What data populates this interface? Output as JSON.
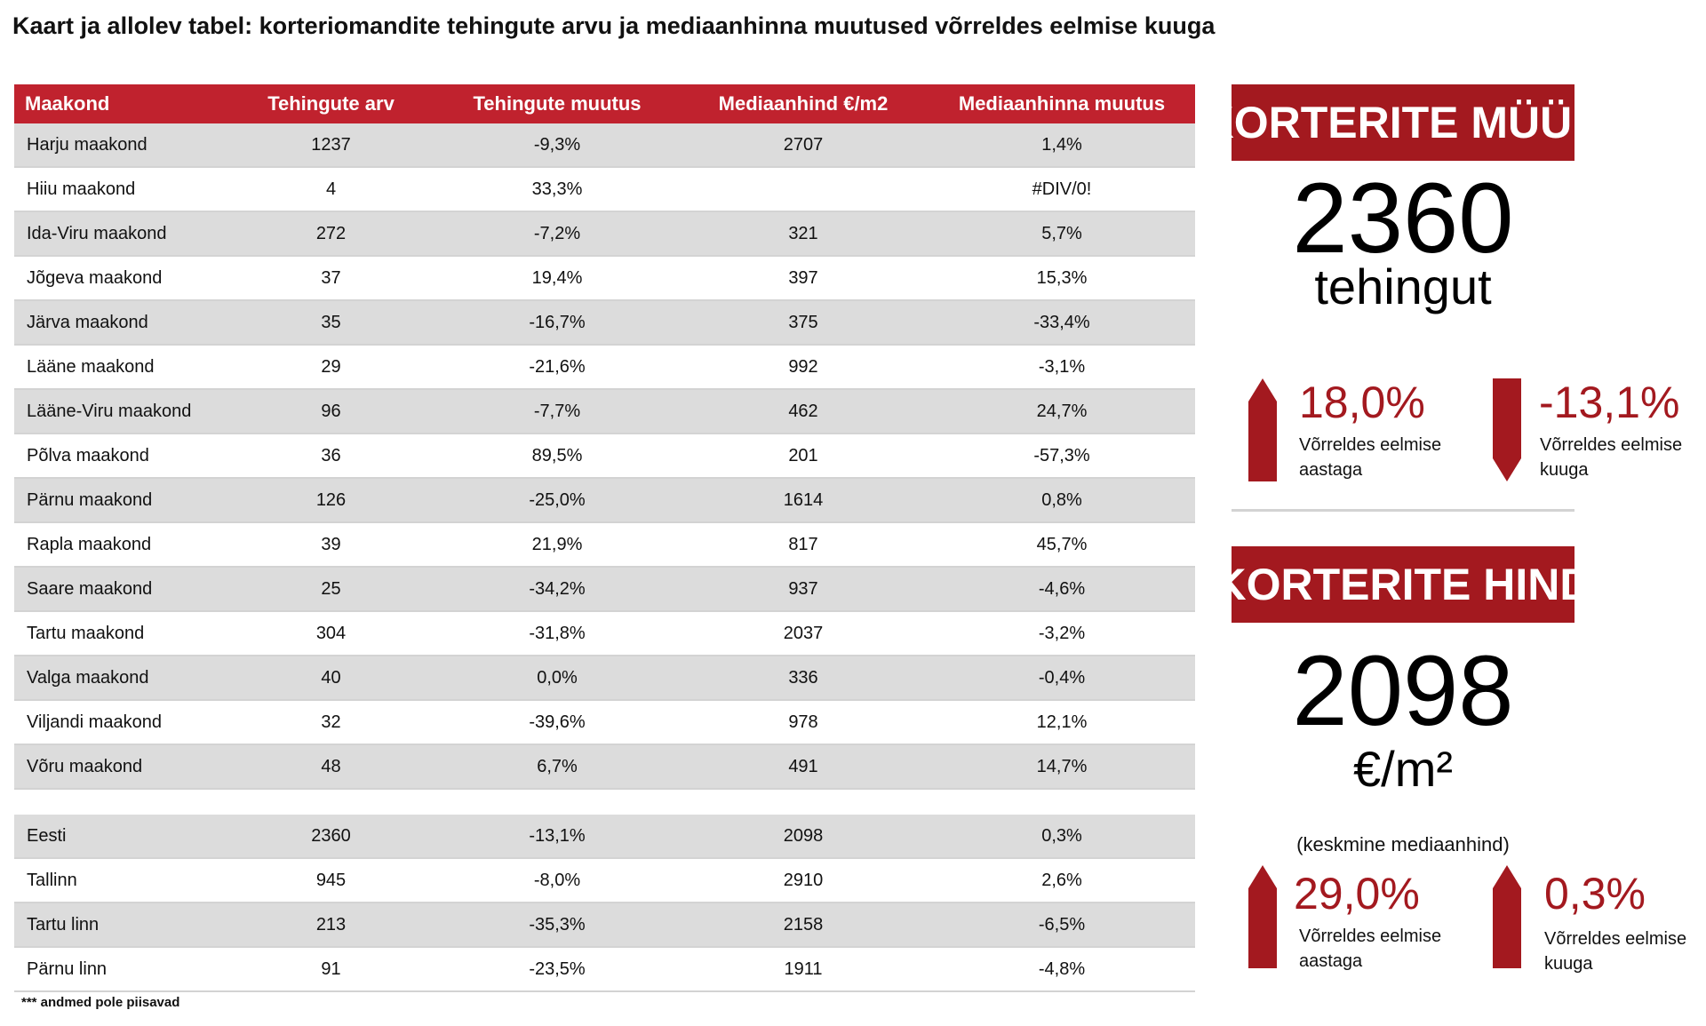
{
  "title": "Kaart ja allolev tabel: korteriomandite tehingute arvu ja mediaanhinna muutused võrreldes eelmise kuuga",
  "table": {
    "columns": [
      "Maakond",
      "Tehingute arv",
      "Tehingute muutus",
      "Mediaanhind €/m2",
      "Mediaanhinna muutus"
    ],
    "rows": [
      [
        "Harju maakond",
        "1237",
        "-9,3%",
        "2707",
        "1,4%"
      ],
      [
        "Hiiu maakond",
        "4",
        "33,3%",
        "",
        "#DIV/0!"
      ],
      [
        "Ida-Viru maakond",
        "272",
        "-7,2%",
        "321",
        "5,7%"
      ],
      [
        "Jõgeva maakond",
        "37",
        "19,4%",
        "397",
        "15,3%"
      ],
      [
        "Järva maakond",
        "35",
        "-16,7%",
        "375",
        "-33,4%"
      ],
      [
        "Lääne maakond",
        "29",
        "-21,6%",
        "992",
        "-3,1%"
      ],
      [
        "Lääne-Viru maakond",
        "96",
        "-7,7%",
        "462",
        "24,7%"
      ],
      [
        "Põlva maakond",
        "36",
        "89,5%",
        "201",
        "-57,3%"
      ],
      [
        "Pärnu maakond",
        "126",
        "-25,0%",
        "1614",
        "0,8%"
      ],
      [
        "Rapla maakond",
        "39",
        "21,9%",
        "817",
        "45,7%"
      ],
      [
        "Saare maakond",
        "25",
        "-34,2%",
        "937",
        "-4,6%"
      ],
      [
        "Tartu maakond",
        "304",
        "-31,8%",
        "2037",
        "-3,2%"
      ],
      [
        "Valga maakond",
        "40",
        "0,0%",
        "336",
        "-0,4%"
      ],
      [
        "Viljandi maakond",
        "32",
        "-39,6%",
        "978",
        "12,1%"
      ],
      [
        "Võru maakond",
        "48",
        "6,7%",
        "491",
        "14,7%"
      ]
    ],
    "summary_rows": [
      [
        "Eesti",
        "2360",
        "-13,1%",
        "2098",
        "0,3%"
      ],
      [
        "Tallinn",
        "945",
        "-8,0%",
        "2910",
        "2,6%"
      ],
      [
        "Tartu linn",
        "213",
        "-35,3%",
        "2158",
        "-6,5%"
      ],
      [
        "Pärnu linn",
        "91",
        "-23,5%",
        "1911",
        "-4,8%"
      ]
    ],
    "footnote": "*** andmed pole piisavad"
  },
  "sales": {
    "banner": "KORTERITE MÜÜK",
    "value": "2360",
    "unit": "tehingut",
    "yearly": {
      "value": "18,0%",
      "caption_line1": "Võrreldes eelmise",
      "caption_line2": "aastaga",
      "direction": "up"
    },
    "monthly": {
      "value": "-13,1%",
      "caption_line1": "Võrreldes eelmise",
      "caption_line2": "kuuga",
      "direction": "down"
    }
  },
  "price": {
    "banner": "KORTERITE HIND",
    "value": "2098",
    "unit": "€/m²",
    "caption": "(keskmine mediaanhind)",
    "yearly": {
      "value": "29,0%",
      "caption_line1": "Võrreldes eelmise",
      "caption_line2": "aastaga",
      "direction": "up"
    },
    "monthly": {
      "value": "0,3%",
      "caption_line1": "Võrreldes eelmise",
      "caption_line2": "kuuga",
      "direction": "up"
    }
  },
  "colors": {
    "header_red": "#c0222e",
    "banner_red": "#a3191f",
    "row_shade": "#dcdcdc"
  },
  "icons": {
    "up": "arrow-up-icon",
    "down": "arrow-down-icon"
  }
}
